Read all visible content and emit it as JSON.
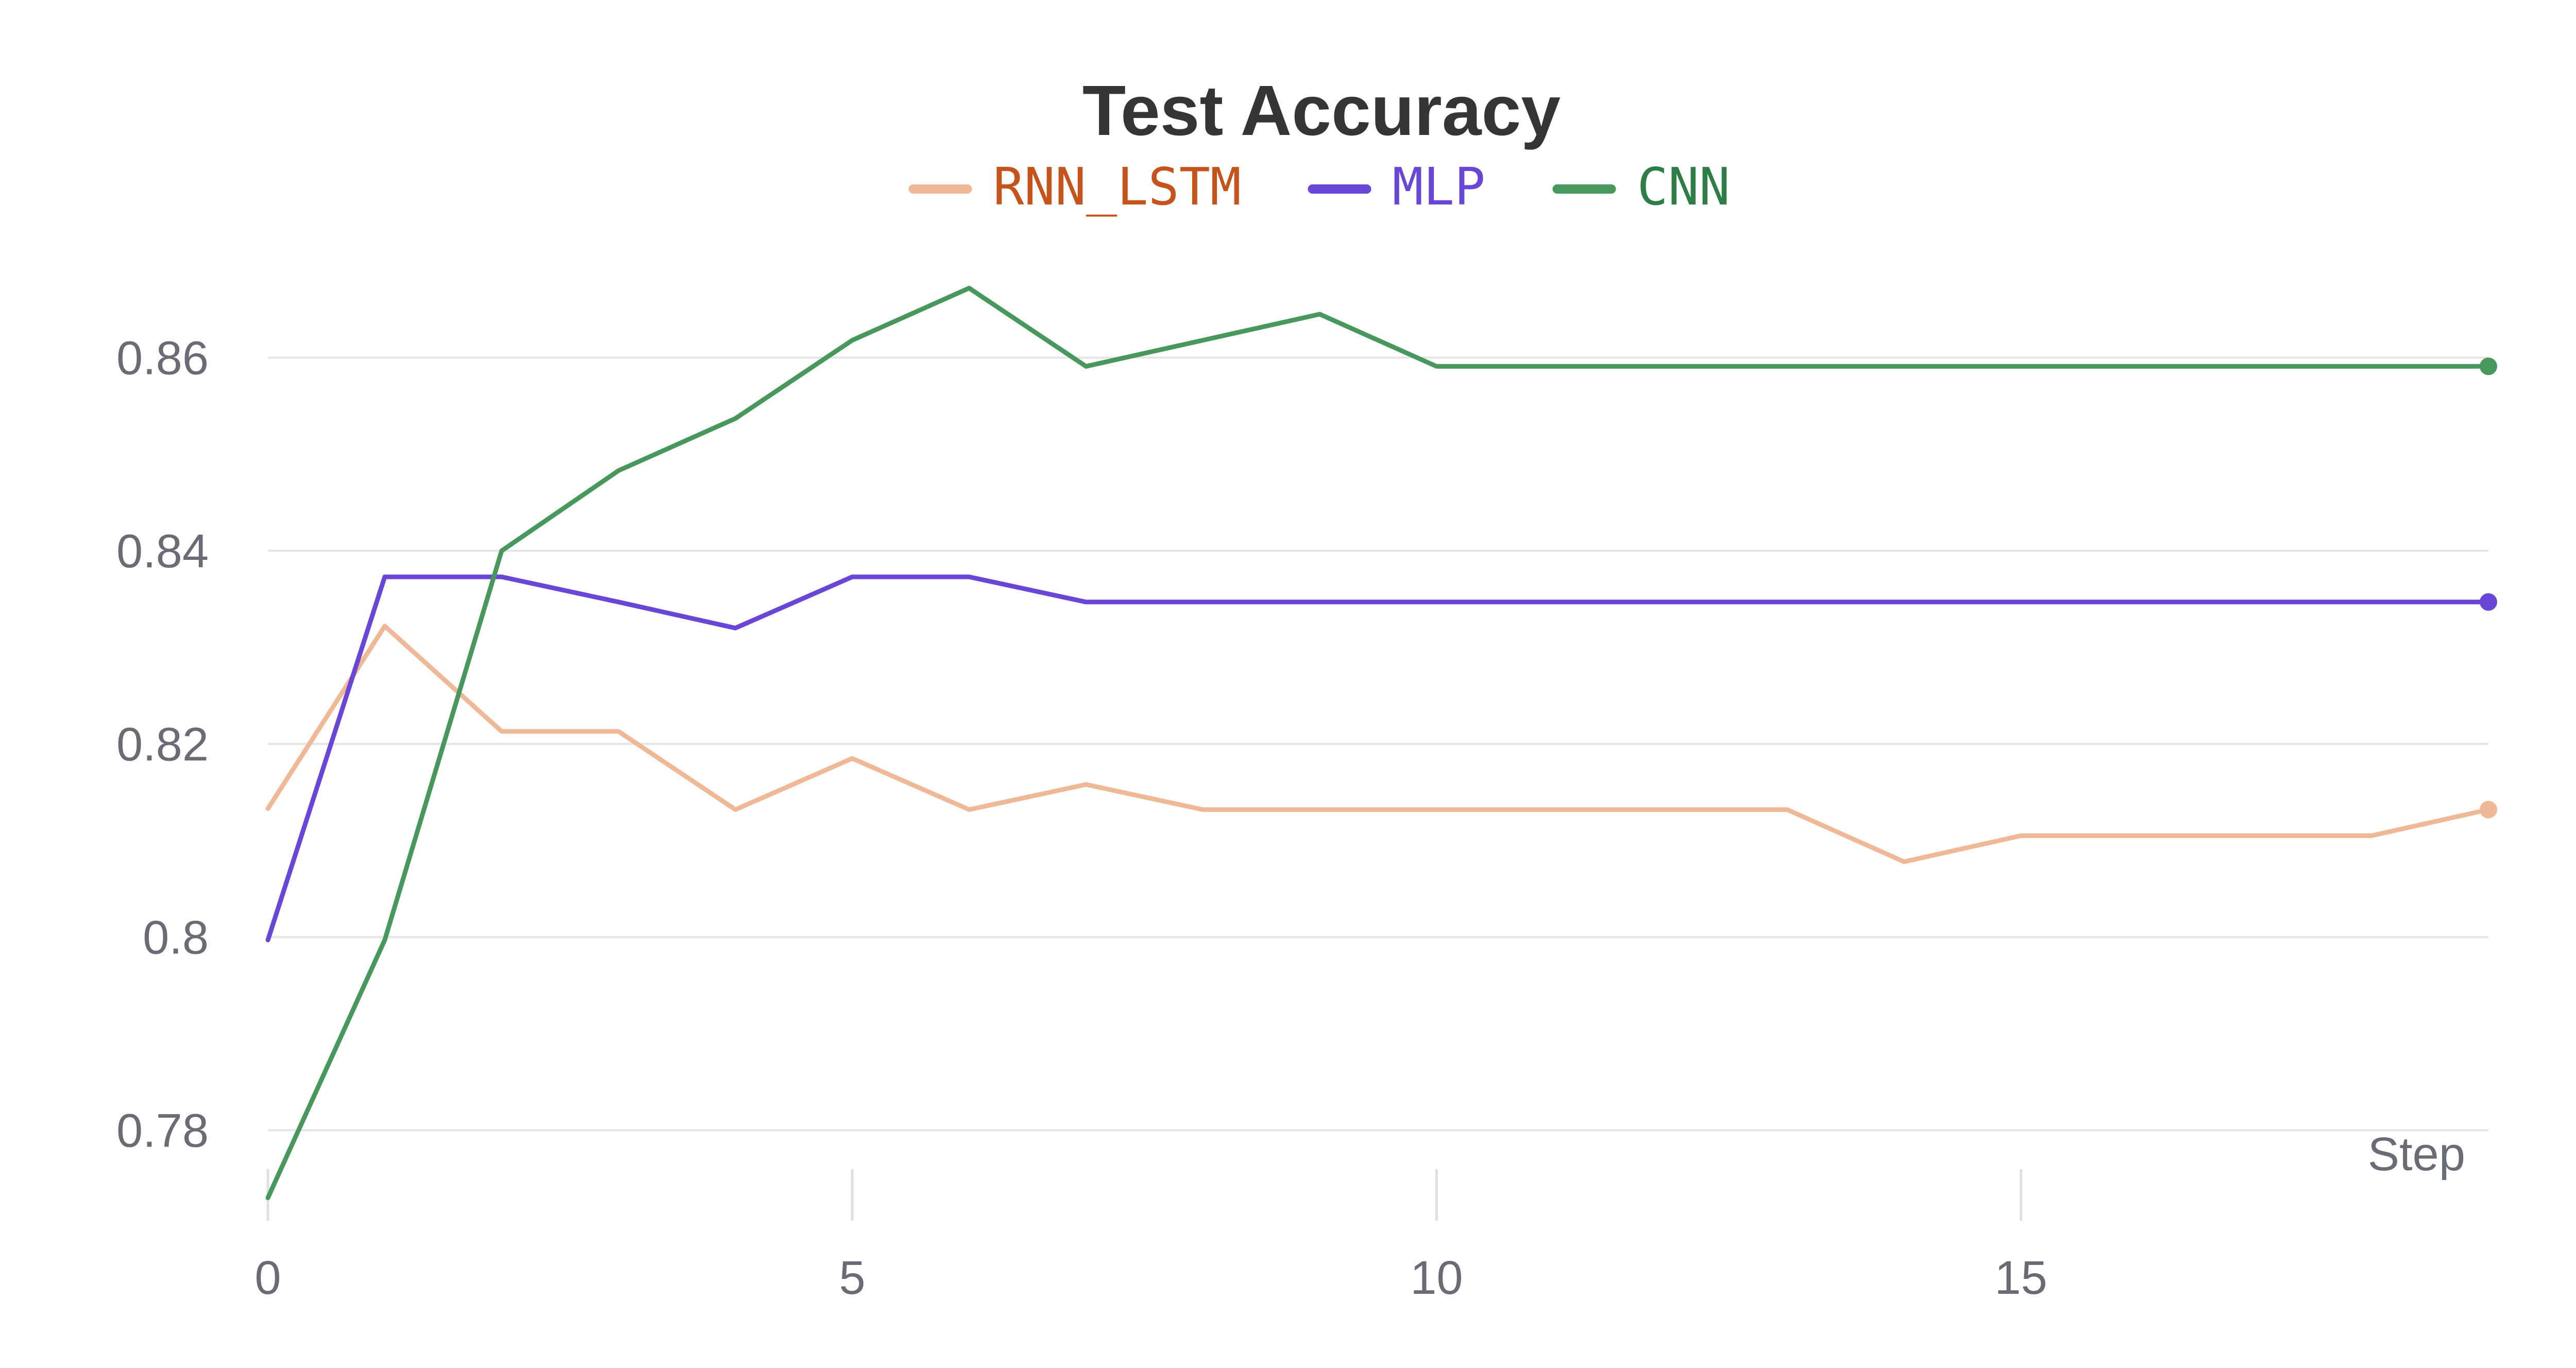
{
  "chart_data": {
    "type": "line",
    "title": "Test Accuracy",
    "xlabel": "Step",
    "ylabel": "",
    "xlim": [
      0,
      19
    ],
    "ylim": [
      0.7725,
      0.8725
    ],
    "x_ticks": [
      0,
      5,
      10,
      15
    ],
    "y_ticks": [
      0.78,
      0.8,
      0.82,
      0.84,
      0.86
    ],
    "y_tick_labels": [
      "0.78",
      "0.8",
      "0.82",
      "0.84",
      "0.86"
    ],
    "grid": true,
    "legend_position": "top",
    "x": [
      0,
      1,
      2,
      3,
      4,
      5,
      6,
      7,
      8,
      9,
      10,
      11,
      12,
      13,
      14,
      15,
      16,
      17,
      18,
      19
    ],
    "series": [
      {
        "name": "RNN_LSTM",
        "color": "#efb998",
        "label_color": "#c4541c",
        "values": [
          0.8133,
          0.8322,
          0.8213,
          0.8213,
          0.8132,
          0.8185,
          0.8132,
          0.8158,
          0.8132,
          0.8132,
          0.8132,
          0.8132,
          0.8132,
          0.8132,
          0.8078,
          0.8105,
          0.8105,
          0.8105,
          0.8105,
          0.8132
        ]
      },
      {
        "name": "MLP",
        "color": "#6a46d6",
        "label_color": "#6a46d6",
        "values": [
          0.7997,
          0.8373,
          0.8373,
          0.8347,
          0.832,
          0.8373,
          0.8373,
          0.8347,
          0.8347,
          0.8347,
          0.8347,
          0.8347,
          0.8347,
          0.8347,
          0.8347,
          0.8347,
          0.8347,
          0.8347,
          0.8347,
          0.8347
        ]
      },
      {
        "name": "CNN",
        "color": "#48985e",
        "label_color": "#2f7d46",
        "values": [
          0.773,
          0.7997,
          0.84,
          0.8483,
          0.8537,
          0.8618,
          0.8672,
          0.8591,
          0.8618,
          0.8645,
          0.8591,
          0.8591,
          0.8591,
          0.8591,
          0.8591,
          0.8591,
          0.8591,
          0.8591,
          0.8591,
          0.8591
        ]
      }
    ]
  }
}
